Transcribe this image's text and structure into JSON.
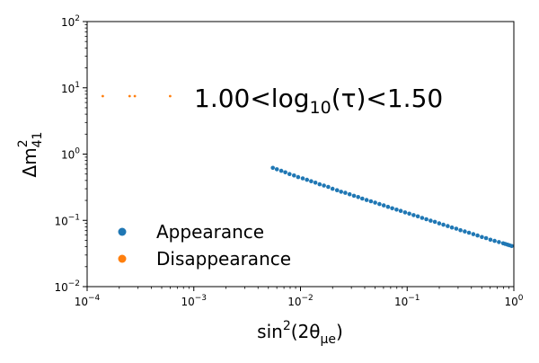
{
  "chart_data": {
    "type": "scatter",
    "xscale": "log",
    "yscale": "log",
    "xlim": [
      0.0001,
      1
    ],
    "ylim": [
      0.01,
      100
    ],
    "grid": false,
    "legend_placement": "lower-left",
    "xlabel": {
      "base": "sin",
      "sup": "2",
      "rest": "(2θ",
      "sub": "μe",
      "close": ")"
    },
    "ylabel": {
      "base": "Δm",
      "sup": "2",
      "sub": "41"
    },
    "annotation": {
      "pre": "1.00<log",
      "sub": "10",
      "post": "(τ)<1.50"
    },
    "x_ticks": [
      {
        "value": 0.0001,
        "base": "10",
        "exp": "−4"
      },
      {
        "value": 0.001,
        "base": "10",
        "exp": "−3"
      },
      {
        "value": 0.01,
        "base": "10",
        "exp": "−2"
      },
      {
        "value": 0.1,
        "base": "10",
        "exp": "−1"
      },
      {
        "value": 1,
        "base": "10",
        "exp": "0"
      }
    ],
    "y_ticks": [
      {
        "value": 0.01,
        "base": "10",
        "exp": "−2"
      },
      {
        "value": 0.1,
        "base": "10",
        "exp": "−1"
      },
      {
        "value": 1,
        "base": "10",
        "exp": "0"
      },
      {
        "value": 10,
        "base": "10",
        "exp": "1"
      },
      {
        "value": 100,
        "base": "10",
        "exp": "2"
      }
    ],
    "series": [
      {
        "name": "Appearance",
        "color": "#1f77b4",
        "x": [
          0.0055,
          0.006,
          0.0066,
          0.0072,
          0.0079,
          0.0087,
          0.0095,
          0.0105,
          0.0115,
          0.0126,
          0.0138,
          0.0151,
          0.0166,
          0.0182,
          0.02,
          0.022,
          0.024,
          0.0263,
          0.0289,
          0.0317,
          0.0347,
          0.038,
          0.0417,
          0.0457,
          0.0501,
          0.055,
          0.0603,
          0.0661,
          0.0724,
          0.0794,
          0.0871,
          0.0955,
          0.1047,
          0.1148,
          0.1259,
          0.138,
          0.1514,
          0.166,
          0.182,
          0.1995,
          0.2188,
          0.2399,
          0.263,
          0.2884,
          0.3162,
          0.3467,
          0.3802,
          0.4169,
          0.4571,
          0.5012,
          0.5495,
          0.6026,
          0.6607,
          0.7244,
          0.7943,
          0.8318,
          0.871,
          0.912,
          0.955
        ],
        "y": [
          0.62,
          0.59,
          0.56,
          0.53,
          0.5,
          0.475,
          0.45,
          0.43,
          0.41,
          0.39,
          0.37,
          0.35,
          0.335,
          0.32,
          0.3,
          0.285,
          0.27,
          0.26,
          0.248,
          0.235,
          0.225,
          0.213,
          0.203,
          0.194,
          0.185,
          0.176,
          0.168,
          0.16,
          0.152,
          0.145,
          0.139,
          0.132,
          0.126,
          0.12,
          0.115,
          0.109,
          0.104,
          0.099,
          0.095,
          0.09,
          0.086,
          0.082,
          0.078,
          0.075,
          0.071,
          0.068,
          0.065,
          0.062,
          0.059,
          0.056,
          0.054,
          0.051,
          0.049,
          0.047,
          0.045,
          0.044,
          0.043,
          0.042,
          0.041
        ]
      },
      {
        "name": "Disappearance",
        "color": "#ff7f0e",
        "x": [
          0.00014,
          0.00025,
          0.00028,
          0.0006
        ],
        "y": [
          7.5,
          7.5,
          7.5,
          7.5
        ]
      }
    ]
  }
}
